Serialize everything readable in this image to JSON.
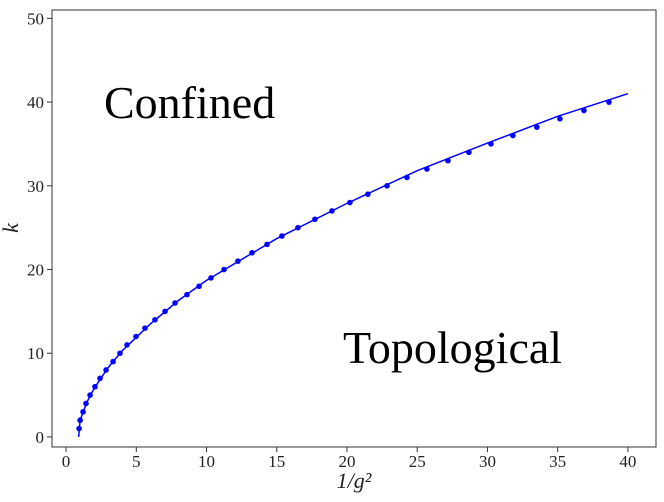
{
  "chart_data": {
    "type": "scatter",
    "xlabel": "1/g²",
    "ylabel": "k",
    "annotations": [
      "Confined",
      "Topological"
    ],
    "xlim": [
      -1,
      42
    ],
    "ylim": [
      -1.2,
      51
    ],
    "xticks": [
      0,
      5,
      10,
      15,
      20,
      25,
      30,
      35,
      40
    ],
    "yticks": [
      0,
      10,
      20,
      30,
      40,
      50
    ],
    "grid": false,
    "series": [
      {
        "kind": "line",
        "color": "#0000ff",
        "x": [
          0.9,
          1.0,
          1.5,
          2,
          3,
          4,
          6,
          8,
          10,
          15,
          20,
          25,
          30,
          35,
          40
        ],
        "values": [
          0,
          2,
          4.2,
          5.8,
          8.3,
          10.3,
          13.5,
          16.3,
          18.7,
          23.7,
          27.9,
          31.8,
          35.1,
          38.3,
          41
        ]
      },
      {
        "kind": "points",
        "color": "#0000ff",
        "x": [
          0.93,
          1.0,
          1.21,
          1.42,
          1.71,
          2.06,
          2.42,
          2.85,
          3.35,
          3.84,
          4.34,
          4.98,
          5.62,
          6.33,
          7.05,
          7.76,
          8.61,
          9.47,
          10.32,
          11.25,
          12.24,
          13.24,
          14.31,
          15.37,
          16.51,
          17.72,
          18.93,
          20.21,
          21.49,
          22.85,
          24.27,
          25.69,
          27.19,
          28.68,
          30.25,
          31.81,
          33.52,
          35.16,
          36.87,
          38.65
        ],
        "values": [
          1,
          2,
          3,
          4,
          5,
          6,
          7,
          8,
          9,
          10,
          11,
          12,
          13,
          14,
          15,
          16,
          17,
          18,
          19,
          20,
          21,
          22,
          23,
          24,
          25,
          26,
          27,
          28,
          29,
          30,
          31,
          32,
          33,
          34,
          35,
          36,
          37,
          38,
          39,
          40
        ]
      }
    ]
  }
}
